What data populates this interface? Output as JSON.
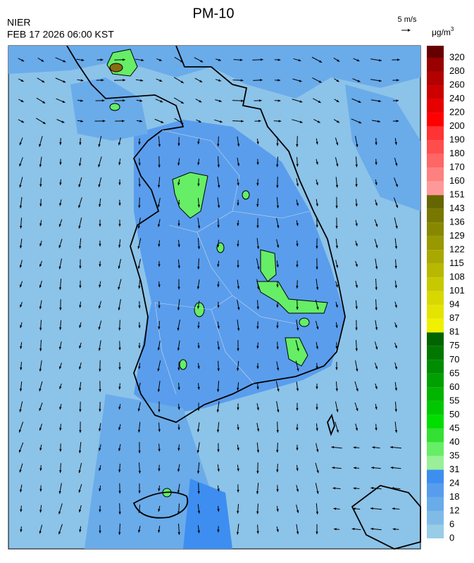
{
  "header": {
    "title": "PM-10",
    "agency": "NIER",
    "datetime": "FEB 17 2026 06:00 KST",
    "wind_scale": "5 m/s"
  },
  "legend": {
    "unit": "μg/m",
    "unit_power": "3",
    "labels": [
      0,
      6,
      12,
      18,
      24,
      31,
      35,
      40,
      45,
      50,
      55,
      60,
      65,
      70,
      75,
      81,
      87,
      94,
      101,
      108,
      115,
      122,
      129,
      136,
      143,
      151,
      160,
      170,
      180,
      190,
      200,
      220,
      240,
      260,
      280,
      320
    ],
    "colors": [
      "#99cce6",
      "#80bbe8",
      "#6aabea",
      "#589ded",
      "#3d8ef0",
      "#99f099",
      "#66ee66",
      "#33e033",
      "#00dd00",
      "#00c800",
      "#00b400",
      "#00a000",
      "#008c00",
      "#007800",
      "#006400",
      "#f0f000",
      "#e4e400",
      "#d8d800",
      "#c8c800",
      "#b8b800",
      "#a8a800",
      "#989800",
      "#888800",
      "#787800",
      "#666600",
      "#ff9999",
      "#ff8080",
      "#ff6666",
      "#ff4d4d",
      "#ff3333",
      "#ff0000",
      "#e60000",
      "#cc0000",
      "#b30000",
      "#990000",
      "#660000"
    ]
  }
}
